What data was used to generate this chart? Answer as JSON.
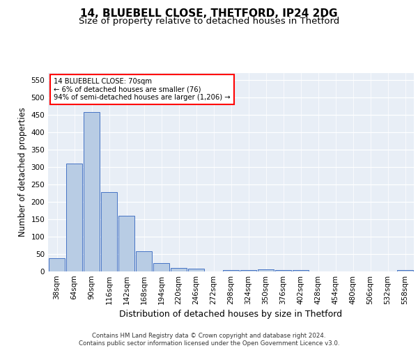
{
  "title1": "14, BLUEBELL CLOSE, THETFORD, IP24 2DG",
  "title2": "Size of property relative to detached houses in Thetford",
  "xlabel": "Distribution of detached houses by size in Thetford",
  "ylabel": "Number of detached properties",
  "categories": [
    "38sqm",
    "64sqm",
    "90sqm",
    "116sqm",
    "142sqm",
    "168sqm",
    "194sqm",
    "220sqm",
    "246sqm",
    "272sqm",
    "298sqm",
    "324sqm",
    "350sqm",
    "376sqm",
    "402sqm",
    "428sqm",
    "454sqm",
    "480sqm",
    "506sqm",
    "532sqm",
    "558sqm"
  ],
  "values": [
    38,
    310,
    458,
    228,
    160,
    58,
    25,
    10,
    8,
    0,
    5,
    5,
    6,
    5,
    5,
    0,
    0,
    0,
    0,
    0,
    5
  ],
  "bar_color": "#b8cce4",
  "bar_edge_color": "#4472c4",
  "annotation_text": "14 BLUEBELL CLOSE: 70sqm\n← 6% of detached houses are smaller (76)\n94% of semi-detached houses are larger (1,206) →",
  "ylim": [
    0,
    570
  ],
  "yticks": [
    0,
    50,
    100,
    150,
    200,
    250,
    300,
    350,
    400,
    450,
    500,
    550
  ],
  "bg_color": "#e8eef6",
  "footer_text": "Contains HM Land Registry data © Crown copyright and database right 2024.\nContains public sector information licensed under the Open Government Licence v3.0.",
  "title1_fontsize": 11,
  "title2_fontsize": 9.5,
  "xlabel_fontsize": 9,
  "ylabel_fontsize": 8.5,
  "tick_fontsize": 7.5,
  "footer_fontsize": 6.2
}
